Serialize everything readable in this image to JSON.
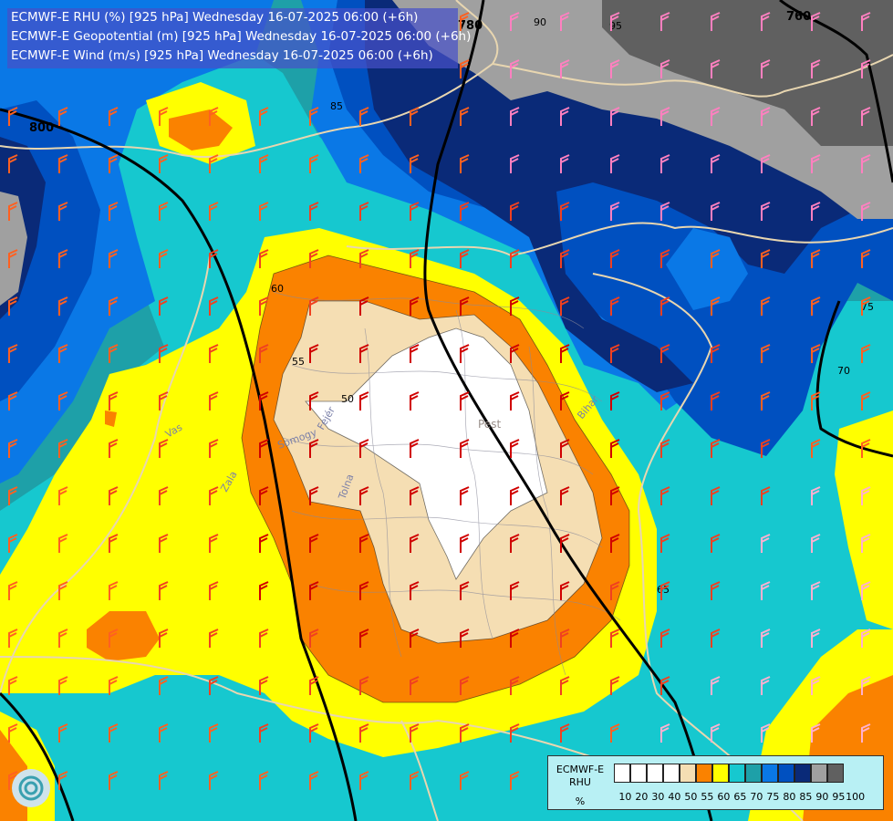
{
  "header": {
    "line1": "ECMWF-E RHU (%) [925 hPa] Wednesday 16-07-2025 06:00 (+6h)",
    "line2": "ECMWF-E Geopotential (m) [925 hPa] Wednesday 16-07-2025 06:00 (+6h)",
    "line3": "ECMWF-E Wind (m/s) [925 hPa] Wednesday 16-07-2025 06:00 (+6h)"
  },
  "legend": {
    "name_line1": "ECMWF-E",
    "name_line2": "RHU",
    "unit": "%",
    "ticks": [
      "10",
      "20",
      "30",
      "40",
      "50",
      "55",
      "60",
      "65",
      "70",
      "75",
      "80",
      "85",
      "90",
      "95",
      "100"
    ],
    "colors": [
      "#ffffff",
      "#ffffff",
      "#ffffff",
      "#ffffff",
      "#f5deb3",
      "#fa8200",
      "#ffff00",
      "#16c8cf",
      "#1ea0a8",
      "#0a78e6",
      "#0050c0",
      "#0a2a78",
      "#a0a0a0",
      "#606060"
    ]
  },
  "colors": {
    "rh_50_less": "#ffffff",
    "rh_50_55": "#f5deb3",
    "rh_55_60": "#fa8200",
    "rh_60_65": "#ffff00",
    "rh_65_70": "#16c8cf",
    "rh_70_75": "#1ea0a8",
    "rh_75_80": "#0a78e6",
    "rh_80_85": "#0050c0",
    "rh_85_90": "#0a2a78",
    "rh_90_95": "#a0a0a0",
    "rh_95_100": "#606060"
  },
  "map": {
    "geopotential_labels": [
      "800",
      "780",
      "760"
    ],
    "rh_labels": [
      "50",
      "55",
      "60",
      "65",
      "70",
      "75",
      "85",
      "90",
      "95"
    ],
    "places": [
      "Pest"
    ],
    "rivers": [
      "Zala",
      "Somogy",
      "Tolna",
      "Vas",
      "Fejér",
      "Bihar"
    ]
  },
  "wind_barbs_icon": "wind-barb-icon",
  "logo_icon": "ecmwf-logo-icon"
}
